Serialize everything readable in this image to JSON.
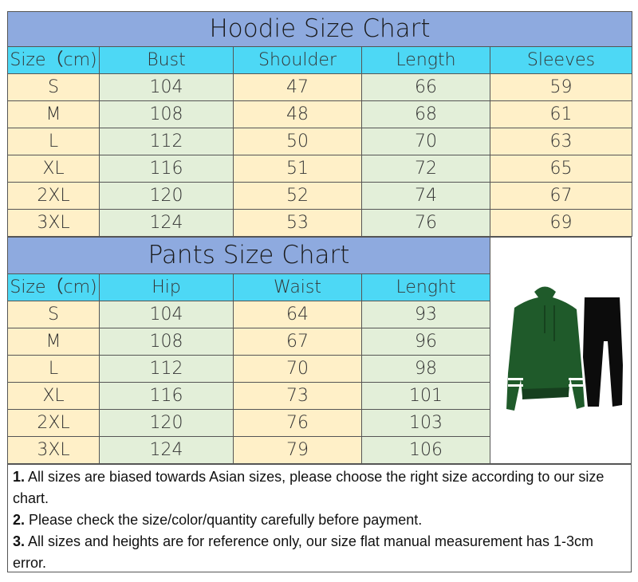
{
  "hoodie": {
    "title": "Hoodie Size Chart",
    "headers": [
      "Size（cm)",
      "Bust",
      "Shoulder",
      "Length",
      "Sleeves"
    ],
    "rows": [
      [
        "S",
        "104",
        "47",
        "66",
        "59"
      ],
      [
        "M",
        "108",
        "48",
        "68",
        "61"
      ],
      [
        "L",
        "112",
        "50",
        "70",
        "63"
      ],
      [
        "XL",
        "116",
        "51",
        "72",
        "65"
      ],
      [
        "2XL",
        "120",
        "52",
        "74",
        "67"
      ],
      [
        "3XL",
        "124",
        "53",
        "76",
        "69"
      ]
    ]
  },
  "pants": {
    "title": "Pants Size Chart",
    "headers": [
      "Size（cm)",
      "Hip",
      "Waist",
      "Lenght"
    ],
    "rows": [
      [
        "S",
        "104",
        "64",
        "93"
      ],
      [
        "M",
        "108",
        "67",
        "96"
      ],
      [
        "L",
        "112",
        "70",
        "98"
      ],
      [
        "XL",
        "116",
        "73",
        "101"
      ],
      [
        "2XL",
        "120",
        "76",
        "103"
      ],
      [
        "3XL",
        "124",
        "79",
        "106"
      ]
    ]
  },
  "notes": [
    {
      "num": "1.",
      "text": " All sizes are biased towards Asian sizes, please choose the right size according to our size chart."
    },
    {
      "num": "2.",
      "text": " Please check the size/color/quantity carefully before payment."
    },
    {
      "num": "3.",
      "text": " All sizes and heights are for reference only, our size flat manual measurement has 1-3cm error."
    }
  ],
  "colors": {
    "title": "#8eaadf",
    "header": "#4dd8f5",
    "cream": "#fff0c8",
    "green": "#e3efd9"
  },
  "product_image": "green hoodie and black pants"
}
